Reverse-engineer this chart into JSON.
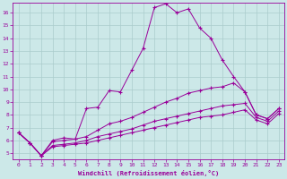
{
  "xlabel": "Windchill (Refroidissement éolien,°C)",
  "background_color": "#cce8e8",
  "line_color": "#990099",
  "grid_color": "#aacccc",
  "xlim": [
    -0.5,
    23.5
  ],
  "ylim": [
    4.5,
    16.8
  ],
  "yticks": [
    5,
    6,
    7,
    8,
    9,
    10,
    11,
    12,
    13,
    14,
    15,
    16
  ],
  "xticks": [
    0,
    1,
    2,
    3,
    4,
    5,
    6,
    7,
    8,
    9,
    10,
    11,
    12,
    13,
    14,
    15,
    16,
    17,
    18,
    19,
    20,
    21,
    22,
    23
  ],
  "series": [
    [
      6.6,
      5.8,
      4.8,
      6.0,
      6.2,
      6.1,
      8.5,
      8.6,
      9.9,
      9.8,
      11.5,
      13.2,
      16.4,
      16.7,
      16.0,
      16.3,
      14.8,
      14.0,
      12.3,
      11.0,
      9.8,
      8.0,
      7.7,
      8.5
    ],
    [
      6.6,
      5.8,
      4.8,
      5.9,
      6.0,
      6.1,
      6.3,
      6.8,
      7.3,
      7.5,
      7.8,
      8.2,
      8.6,
      9.0,
      9.3,
      9.7,
      9.9,
      10.1,
      10.2,
      10.5,
      9.8,
      8.0,
      7.7,
      8.5
    ],
    [
      6.6,
      5.8,
      4.8,
      5.6,
      5.7,
      5.8,
      6.0,
      6.3,
      6.5,
      6.7,
      6.9,
      7.2,
      7.5,
      7.7,
      7.9,
      8.1,
      8.3,
      8.5,
      8.7,
      8.8,
      8.9,
      7.8,
      7.5,
      8.3
    ],
    [
      6.6,
      5.8,
      4.8,
      5.5,
      5.6,
      5.7,
      5.8,
      6.0,
      6.2,
      6.4,
      6.6,
      6.8,
      7.0,
      7.2,
      7.4,
      7.6,
      7.8,
      7.9,
      8.0,
      8.2,
      8.4,
      7.6,
      7.3,
      8.1
    ]
  ]
}
